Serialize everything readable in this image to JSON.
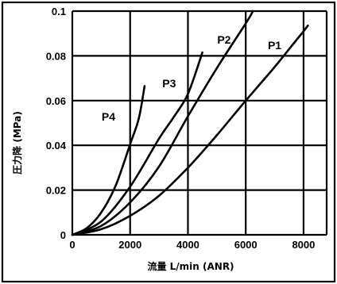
{
  "chart_data": {
    "type": "line",
    "xlabel": "流量 L/min (ANR)",
    "ylabel": "圧力降 (MPa)",
    "xlim": [
      0,
      8800
    ],
    "ylim": [
      0,
      0.1
    ],
    "x_ticks": [
      0,
      2000,
      4000,
      6000,
      8000
    ],
    "x_tick_labels": [
      "0",
      "2000",
      "4000",
      "6000",
      "8000"
    ],
    "y_ticks": [
      0,
      0.02,
      0.04,
      0.06,
      0.08,
      0.1
    ],
    "y_tick_labels": [
      "0",
      "0.02",
      "0.04",
      "0.06",
      "0.08",
      "0.1"
    ],
    "grid": true,
    "series": [
      {
        "name": "P1",
        "label_at": [
          7000,
          0.083
        ],
        "points": [
          [
            0,
            0
          ],
          [
            1000,
            0.0025
          ],
          [
            2000,
            0.0085
          ],
          [
            3000,
            0.0175
          ],
          [
            4000,
            0.03
          ],
          [
            5000,
            0.0445
          ],
          [
            6000,
            0.06
          ],
          [
            7000,
            0.075
          ],
          [
            7500,
            0.083
          ],
          [
            8000,
            0.091
          ],
          [
            8150,
            0.0935
          ]
        ]
      },
      {
        "name": "P2",
        "label_at": [
          5250,
          0.0855
        ],
        "points": [
          [
            0,
            0
          ],
          [
            1000,
            0.004
          ],
          [
            2000,
            0.0145
          ],
          [
            3000,
            0.0305
          ],
          [
            4000,
            0.053
          ],
          [
            5000,
            0.0745
          ],
          [
            6000,
            0.0945
          ],
          [
            6250,
            0.1
          ]
        ]
      },
      {
        "name": "P3",
        "label_at": [
          3350,
          0.066
        ],
        "points": [
          [
            0,
            0
          ],
          [
            1000,
            0.006
          ],
          [
            2000,
            0.0215
          ],
          [
            3000,
            0.043
          ],
          [
            3500,
            0.0525
          ],
          [
            4000,
            0.063
          ],
          [
            4500,
            0.0815
          ]
        ]
      },
      {
        "name": "P4",
        "label_at": [
          1250,
          0.051
        ],
        "points": [
          [
            0,
            0
          ],
          [
            500,
            0.003
          ],
          [
            1000,
            0.01
          ],
          [
            1500,
            0.022
          ],
          [
            2000,
            0.0405
          ],
          [
            2300,
            0.052
          ],
          [
            2500,
            0.0665
          ]
        ]
      }
    ]
  }
}
